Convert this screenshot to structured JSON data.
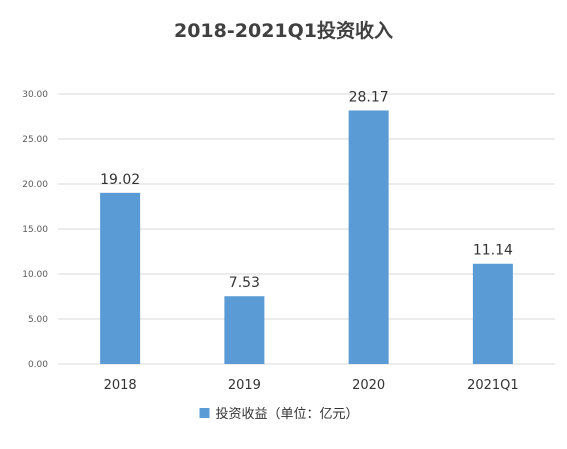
{
  "chart_data": {
    "type": "bar",
    "title": "2018-2021Q1投资收入",
    "categories": [
      "2018",
      "2019",
      "2020",
      "2021Q1"
    ],
    "series": [
      {
        "name": "投资收益（单位：亿元）",
        "values": [
          19.02,
          7.53,
          28.17,
          11.14
        ],
        "color": "#5b9bd5"
      }
    ],
    "data_labels": [
      "19.02",
      "7.53",
      "28.17",
      "11.14"
    ],
    "y_ticks": [
      "0.00",
      "5.00",
      "10.00",
      "15.00",
      "20.00",
      "25.00",
      "30.00"
    ],
    "ylim": [
      0,
      30
    ],
    "grid": true,
    "legend_position": "bottom"
  }
}
